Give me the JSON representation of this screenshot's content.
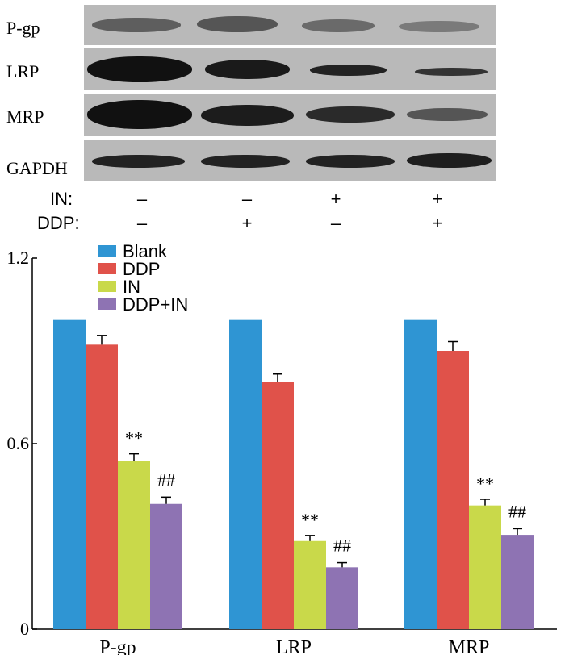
{
  "blot": {
    "proteins": [
      "P-gp",
      "LRP",
      "MRP",
      "GAPDH"
    ],
    "conditions": [
      {
        "label": "IN:",
        "signs": [
          "–",
          "–",
          "+",
          "+"
        ]
      },
      {
        "label": "DDP:",
        "signs": [
          "–",
          "+",
          "–",
          "+"
        ]
      }
    ]
  },
  "colors": {
    "Blank": "#2f95d3",
    "DDP": "#e0524a",
    "IN": "#c9d94a",
    "DDP+IN": "#8e73b3"
  },
  "chart_data": {
    "type": "bar",
    "categories": [
      "P-gp",
      "LRP",
      "MRP"
    ],
    "series": [
      {
        "name": "Blank",
        "values": [
          1.0,
          1.0,
          1.0
        ],
        "errors": [
          0,
          0,
          0
        ]
      },
      {
        "name": "DDP",
        "values": [
          0.92,
          0.8,
          0.9
        ],
        "errors": [
          0.03,
          0.025,
          0.03
        ]
      },
      {
        "name": "IN",
        "values": [
          0.545,
          0.285,
          0.4
        ],
        "errors": [
          0.022,
          0.018,
          0.02
        ]
      },
      {
        "name": "DDP+IN",
        "values": [
          0.405,
          0.2,
          0.305
        ],
        "errors": [
          0.022,
          0.015,
          0.02
        ]
      }
    ],
    "significance": [
      {
        "category": "P-gp",
        "series": "IN",
        "text": "**"
      },
      {
        "category": "P-gp",
        "series": "DDP+IN",
        "text": "##"
      },
      {
        "category": "LRP",
        "series": "IN",
        "text": "**"
      },
      {
        "category": "LRP",
        "series": "DDP+IN",
        "text": "##"
      },
      {
        "category": "MRP",
        "series": "IN",
        "text": "**"
      },
      {
        "category": "MRP",
        "series": "DDP+IN",
        "text": "##"
      }
    ],
    "y_ticks": [
      "1.2",
      "0.6",
      "0"
    ],
    "ylim": [
      0,
      1.2
    ],
    "legend_position": "top-left",
    "grid": false
  }
}
